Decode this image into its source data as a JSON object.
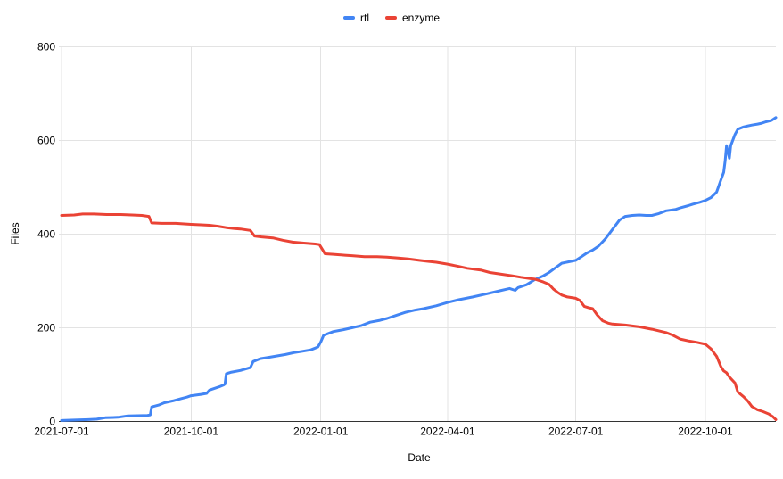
{
  "page": {
    "background": "#ffffff"
  },
  "chart_data": {
    "type": "line",
    "title": "",
    "xlabel": "Date",
    "ylabel": "Files",
    "ylim": [
      0,
      800
    ],
    "yticks": [
      0,
      200,
      400,
      600,
      800
    ],
    "xticks": [
      "2021-07-01",
      "2021-10-01",
      "2022-01-01",
      "2022-04-01",
      "2022-07-01",
      "2022-10-01"
    ],
    "xdomain": [
      "2021-07-01",
      "2022-11-20"
    ],
    "grid": true,
    "legend_position": "top-center",
    "colors": {
      "grid": "#e3e3e3",
      "axis": "#333333",
      "text": "#000000"
    },
    "series": [
      {
        "name": "rtl",
        "color": "#4285F4",
        "points": [
          [
            "2021-07-01",
            2
          ],
          [
            "2021-07-10",
            3
          ],
          [
            "2021-07-20",
            4
          ],
          [
            "2021-07-26",
            5
          ],
          [
            "2021-08-01",
            8
          ],
          [
            "2021-08-10",
            9
          ],
          [
            "2021-08-17",
            12
          ],
          [
            "2021-08-31",
            13
          ],
          [
            "2021-09-02",
            14
          ],
          [
            "2021-09-03",
            31
          ],
          [
            "2021-09-08",
            35
          ],
          [
            "2021-09-12",
            40
          ],
          [
            "2021-09-18",
            44
          ],
          [
            "2021-09-24",
            49
          ],
          [
            "2021-09-28",
            52
          ],
          [
            "2021-10-01",
            55
          ],
          [
            "2021-10-08",
            58
          ],
          [
            "2021-10-12",
            60
          ],
          [
            "2021-10-14",
            67
          ],
          [
            "2021-10-21",
            74
          ],
          [
            "2021-10-24",
            78
          ],
          [
            "2021-10-25",
            80
          ],
          [
            "2021-10-26",
            102
          ],
          [
            "2021-10-29",
            105
          ],
          [
            "2021-11-05",
            109
          ],
          [
            "2021-11-12",
            115
          ],
          [
            "2021-11-14",
            128
          ],
          [
            "2021-11-19",
            134
          ],
          [
            "2021-11-25",
            137
          ],
          [
            "2021-12-01",
            140
          ],
          [
            "2021-12-07",
            143
          ],
          [
            "2021-12-13",
            147
          ],
          [
            "2021-12-19",
            150
          ],
          [
            "2021-12-25",
            153
          ],
          [
            "2021-12-30",
            159
          ],
          [
            "2022-01-01",
            170
          ],
          [
            "2022-01-03",
            184
          ],
          [
            "2022-01-10",
            192
          ],
          [
            "2022-01-17",
            196
          ],
          [
            "2022-01-23",
            200
          ],
          [
            "2022-01-30",
            205
          ],
          [
            "2022-02-05",
            212
          ],
          [
            "2022-02-12",
            216
          ],
          [
            "2022-02-17",
            220
          ],
          [
            "2022-02-24",
            227
          ],
          [
            "2022-03-02",
            233
          ],
          [
            "2022-03-09",
            238
          ],
          [
            "2022-03-15",
            241
          ],
          [
            "2022-03-24",
            247
          ],
          [
            "2022-04-01",
            254
          ],
          [
            "2022-04-09",
            260
          ],
          [
            "2022-04-19",
            266
          ],
          [
            "2022-04-28",
            272
          ],
          [
            "2022-05-08",
            279
          ],
          [
            "2022-05-15",
            284
          ],
          [
            "2022-05-19",
            280
          ],
          [
            "2022-05-21",
            286
          ],
          [
            "2022-05-27",
            292
          ],
          [
            "2022-06-02",
            303
          ],
          [
            "2022-06-08",
            311
          ],
          [
            "2022-06-12",
            318
          ],
          [
            "2022-06-16",
            327
          ],
          [
            "2022-06-21",
            338
          ],
          [
            "2022-06-26",
            341
          ],
          [
            "2022-07-01",
            344
          ],
          [
            "2022-07-05",
            352
          ],
          [
            "2022-07-09",
            360
          ],
          [
            "2022-07-13",
            366
          ],
          [
            "2022-07-17",
            374
          ],
          [
            "2022-07-22",
            390
          ],
          [
            "2022-07-27",
            410
          ],
          [
            "2022-08-01",
            430
          ],
          [
            "2022-08-05",
            438
          ],
          [
            "2022-08-10",
            440
          ],
          [
            "2022-08-15",
            441
          ],
          [
            "2022-08-20",
            440
          ],
          [
            "2022-08-24",
            440
          ],
          [
            "2022-08-29",
            444
          ],
          [
            "2022-09-03",
            450
          ],
          [
            "2022-09-10",
            453
          ],
          [
            "2022-09-13",
            456
          ],
          [
            "2022-09-19",
            461
          ],
          [
            "2022-09-22",
            464
          ],
          [
            "2022-09-27",
            468
          ],
          [
            "2022-10-01",
            472
          ],
          [
            "2022-10-05",
            478
          ],
          [
            "2022-10-09",
            490
          ],
          [
            "2022-10-12",
            516
          ],
          [
            "2022-10-14",
            532
          ],
          [
            "2022-10-15",
            556
          ],
          [
            "2022-10-16",
            589
          ],
          [
            "2022-10-18",
            562
          ],
          [
            "2022-10-19",
            589
          ],
          [
            "2022-10-22",
            613
          ],
          [
            "2022-10-24",
            624
          ],
          [
            "2022-10-28",
            629
          ],
          [
            "2022-10-31",
            631
          ],
          [
            "2022-11-03",
            633
          ],
          [
            "2022-11-07",
            635
          ],
          [
            "2022-11-10",
            637
          ],
          [
            "2022-11-13",
            640
          ],
          [
            "2022-11-17",
            643
          ],
          [
            "2022-11-20",
            649
          ]
        ]
      },
      {
        "name": "enzyme",
        "color": "#EA4335",
        "points": [
          [
            "2021-07-01",
            440
          ],
          [
            "2021-07-10",
            441
          ],
          [
            "2021-07-16",
            443
          ],
          [
            "2021-07-24",
            443
          ],
          [
            "2021-08-02",
            442
          ],
          [
            "2021-08-12",
            442
          ],
          [
            "2021-08-20",
            441
          ],
          [
            "2021-08-27",
            440
          ],
          [
            "2021-09-01",
            438
          ],
          [
            "2021-09-03",
            424
          ],
          [
            "2021-09-10",
            423
          ],
          [
            "2021-09-20",
            423
          ],
          [
            "2021-10-01",
            421
          ],
          [
            "2021-10-08",
            420
          ],
          [
            "2021-10-14",
            419
          ],
          [
            "2021-10-20",
            417
          ],
          [
            "2021-10-26",
            414
          ],
          [
            "2021-11-01",
            412
          ],
          [
            "2021-11-05",
            411
          ],
          [
            "2021-11-12",
            408
          ],
          [
            "2021-11-15",
            396
          ],
          [
            "2021-11-20",
            394
          ],
          [
            "2021-11-28",
            392
          ],
          [
            "2021-12-05",
            387
          ],
          [
            "2021-12-12",
            383
          ],
          [
            "2021-12-20",
            381
          ],
          [
            "2021-12-28",
            379
          ],
          [
            "2021-12-31",
            378
          ],
          [
            "2022-01-02",
            368
          ],
          [
            "2022-01-04",
            358
          ],
          [
            "2022-01-10",
            357
          ],
          [
            "2022-01-18",
            355
          ],
          [
            "2022-01-23",
            354
          ],
          [
            "2022-02-01",
            352
          ],
          [
            "2022-02-10",
            352
          ],
          [
            "2022-02-17",
            351
          ],
          [
            "2022-02-25",
            349
          ],
          [
            "2022-03-04",
            347
          ],
          [
            "2022-03-12",
            344
          ],
          [
            "2022-03-18",
            342
          ],
          [
            "2022-03-24",
            340
          ],
          [
            "2022-04-01",
            336
          ],
          [
            "2022-04-09",
            331
          ],
          [
            "2022-04-15",
            327
          ],
          [
            "2022-04-25",
            323
          ],
          [
            "2022-05-01",
            318
          ],
          [
            "2022-05-08",
            315
          ],
          [
            "2022-05-17",
            311
          ],
          [
            "2022-05-23",
            308
          ],
          [
            "2022-05-30",
            305
          ],
          [
            "2022-06-02",
            304
          ],
          [
            "2022-06-08",
            298
          ],
          [
            "2022-06-12",
            293
          ],
          [
            "2022-06-15",
            283
          ],
          [
            "2022-06-18",
            276
          ],
          [
            "2022-06-21",
            270
          ],
          [
            "2022-06-25",
            266
          ],
          [
            "2022-07-01",
            263
          ],
          [
            "2022-07-04",
            258
          ],
          [
            "2022-07-07",
            246
          ],
          [
            "2022-07-10",
            243
          ],
          [
            "2022-07-13",
            241
          ],
          [
            "2022-07-16",
            228
          ],
          [
            "2022-07-20",
            215
          ],
          [
            "2022-07-24",
            210
          ],
          [
            "2022-07-27",
            208
          ],
          [
            "2022-08-05",
            206
          ],
          [
            "2022-08-15",
            202
          ],
          [
            "2022-08-24",
            197
          ],
          [
            "2022-09-03",
            190
          ],
          [
            "2022-09-08",
            184
          ],
          [
            "2022-09-13",
            176
          ],
          [
            "2022-09-19",
            172
          ],
          [
            "2022-09-25",
            169
          ],
          [
            "2022-10-01",
            165
          ],
          [
            "2022-10-05",
            155
          ],
          [
            "2022-10-09",
            139
          ],
          [
            "2022-10-12",
            117
          ],
          [
            "2022-10-14",
            108
          ],
          [
            "2022-10-16",
            104
          ],
          [
            "2022-10-18",
            95
          ],
          [
            "2022-10-22",
            82
          ],
          [
            "2022-10-24",
            63
          ],
          [
            "2022-10-28",
            53
          ],
          [
            "2022-10-31",
            44
          ],
          [
            "2022-11-03",
            32
          ],
          [
            "2022-11-07",
            25
          ],
          [
            "2022-11-11",
            21
          ],
          [
            "2022-11-15",
            16
          ],
          [
            "2022-11-18",
            10
          ],
          [
            "2022-11-20",
            4
          ]
        ]
      }
    ]
  }
}
